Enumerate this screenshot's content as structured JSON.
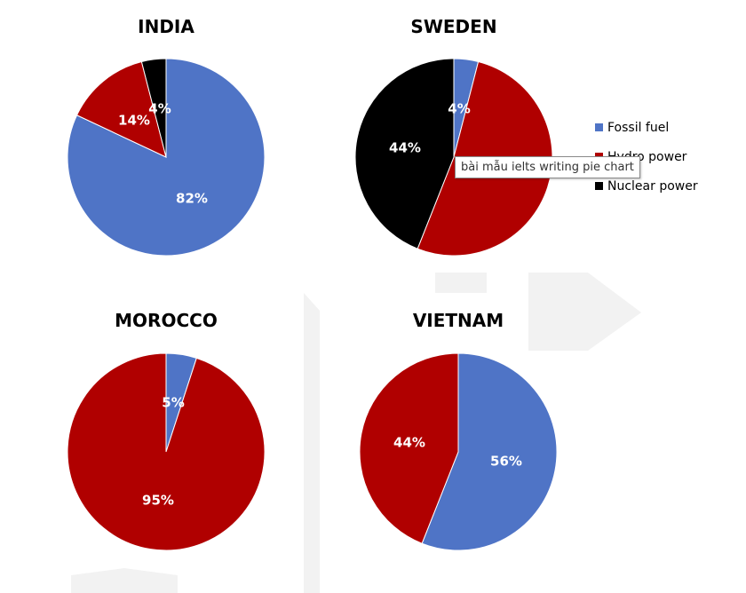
{
  "legend": {
    "position": "right",
    "entries": [
      {
        "label": "Fossil fuel",
        "color": "#4F74C6"
      },
      {
        "label": "Hydro power",
        "color": "#B00000"
      },
      {
        "label": "Nuclear power",
        "color": "#000000"
      }
    ]
  },
  "tooltip": {
    "text": "bài mẫu ielts writing pie chart"
  },
  "chart_data": [
    {
      "type": "pie",
      "title": "INDIA",
      "categories": [
        "Fossil fuel",
        "Hydro power",
        "Nuclear power"
      ],
      "values": [
        82,
        14,
        4
      ],
      "labels": [
        "82%",
        "14%",
        "4%"
      ]
    },
    {
      "type": "pie",
      "title": "SWEDEN",
      "categories": [
        "Fossil fuel",
        "Hydro power",
        "Nuclear power"
      ],
      "values": [
        4,
        52,
        44
      ],
      "labels": [
        "4%",
        "",
        "44%"
      ]
    },
    {
      "type": "pie",
      "title": "MOROCCO",
      "categories": [
        "Fossil fuel",
        "Hydro power"
      ],
      "values": [
        5,
        95
      ],
      "labels": [
        "5%",
        "95%"
      ]
    },
    {
      "type": "pie",
      "title": "VIETNAM",
      "categories": [
        "Fossil fuel",
        "Hydro power"
      ],
      "values": [
        56,
        44
      ],
      "labels": [
        "56%",
        "44%"
      ]
    }
  ]
}
